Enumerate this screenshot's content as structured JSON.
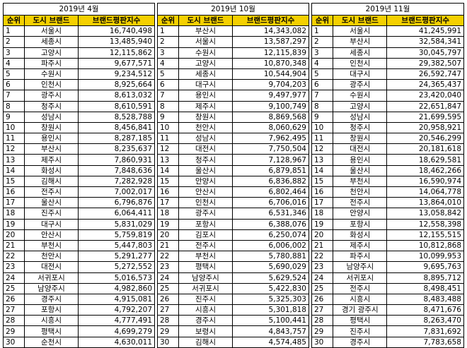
{
  "tables": [
    {
      "period": "2019년 4월",
      "headers": [
        "순위",
        "도시 브랜드",
        "브랜드평판지수"
      ],
      "rows": [
        [
          "1",
          "서울시",
          "16,740,498"
        ],
        [
          "2",
          "세종시",
          "13,485,940"
        ],
        [
          "3",
          "고양시",
          "12,115,862"
        ],
        [
          "4",
          "파주시",
          "9,677,571"
        ],
        [
          "5",
          "수원시",
          "9,234,512"
        ],
        [
          "6",
          "인천시",
          "8,925,664"
        ],
        [
          "7",
          "광주시",
          "8,613,032"
        ],
        [
          "8",
          "청주시",
          "8,610,591"
        ],
        [
          "9",
          "성남시",
          "8,528,788"
        ],
        [
          "10",
          "창원시",
          "8,456,841"
        ],
        [
          "11",
          "용인시",
          "8,287,185"
        ],
        [
          "12",
          "부산시",
          "8,235,637"
        ],
        [
          "13",
          "제주시",
          "7,860,931"
        ],
        [
          "14",
          "화성시",
          "7,848,636"
        ],
        [
          "15",
          "김해시",
          "7,282,928"
        ],
        [
          "16",
          "전주시",
          "7,002,017"
        ],
        [
          "17",
          "울산시",
          "6,796,876"
        ],
        [
          "18",
          "진주시",
          "6,064,411"
        ],
        [
          "19",
          "대구시",
          "5,831,029"
        ],
        [
          "20",
          "안산시",
          "5,759,819"
        ],
        [
          "21",
          "부천시",
          "5,447,803"
        ],
        [
          "22",
          "천안시",
          "5,291,277"
        ],
        [
          "23",
          "대전시",
          "5,272,552"
        ],
        [
          "24",
          "서귀포시",
          "5,016,573"
        ],
        [
          "25",
          "남양주시",
          "4,982,860"
        ],
        [
          "26",
          "경주시",
          "4,915,081"
        ],
        [
          "27",
          "포항시",
          "4,792,207"
        ],
        [
          "28",
          "시흥시",
          "4,777,491"
        ],
        [
          "29",
          "평택시",
          "4,699,279"
        ],
        [
          "30",
          "순천시",
          "4,630,011"
        ]
      ]
    },
    {
      "period": "2019년 10월",
      "headers": [
        "순위",
        "도시 브랜드",
        "브랜드평판지수"
      ],
      "rows": [
        [
          "1",
          "부산시",
          "14,343,082"
        ],
        [
          "2",
          "서울시",
          "13,587,297"
        ],
        [
          "3",
          "수원시",
          "12,115,839"
        ],
        [
          "4",
          "고양시",
          "10,870,348"
        ],
        [
          "5",
          "세종시",
          "10,544,904"
        ],
        [
          "6",
          "대구시",
          "9,704,203"
        ],
        [
          "7",
          "용인시",
          "9,497,977"
        ],
        [
          "8",
          "제주시",
          "9,100,749"
        ],
        [
          "9",
          "창원시",
          "8,869,568"
        ],
        [
          "10",
          "천안시",
          "8,060,629"
        ],
        [
          "11",
          "성남시",
          "7,962,495"
        ],
        [
          "12",
          "대전시",
          "7,750,504"
        ],
        [
          "13",
          "청주시",
          "7,128,967"
        ],
        [
          "14",
          "울산시",
          "6,879,851"
        ],
        [
          "15",
          "안양시",
          "6,836,882"
        ],
        [
          "16",
          "안산시",
          "6,802,464"
        ],
        [
          "17",
          "인천시",
          "6,706,016"
        ],
        [
          "18",
          "광주시",
          "6,531,346"
        ],
        [
          "19",
          "포항시",
          "6,388,076"
        ],
        [
          "20",
          "김포시",
          "6,250,074"
        ],
        [
          "21",
          "전주시",
          "6,006,002"
        ],
        [
          "22",
          "부천시",
          "5,780,881"
        ],
        [
          "23",
          "평택시",
          "5,690,029"
        ],
        [
          "24",
          "남양주시",
          "5,629,524"
        ],
        [
          "25",
          "서귀포시",
          "5,422,830"
        ],
        [
          "26",
          "진주시",
          "5,325,303"
        ],
        [
          "27",
          "시흥시",
          "5,301,818"
        ],
        [
          "28",
          "경주시",
          "5,100,441"
        ],
        [
          "29",
          "보령시",
          "4,843,757"
        ],
        [
          "30",
          "김해시",
          "4,574,485"
        ]
      ]
    },
    {
      "period": "2019년 11월",
      "headers": [
        "순위",
        "도시 브랜드",
        "브랜드평판지수"
      ],
      "rows": [
        [
          "1",
          "서울시",
          "41,245,991"
        ],
        [
          "2",
          "부산시",
          "32,584,341"
        ],
        [
          "3",
          "세종시",
          "30,045,797"
        ],
        [
          "4",
          "인천시",
          "29,382,507"
        ],
        [
          "5",
          "대구시",
          "26,592,747"
        ],
        [
          "6",
          "광주시",
          "24,365,437"
        ],
        [
          "7",
          "수원시",
          "23,420,040"
        ],
        [
          "8",
          "고양시",
          "22,651,847"
        ],
        [
          "9",
          "성남시",
          "21,699,595"
        ],
        [
          "10",
          "청주시",
          "20,958,921"
        ],
        [
          "11",
          "창원시",
          "20,546,299"
        ],
        [
          "12",
          "대전시",
          "20,181,618"
        ],
        [
          "13",
          "용인시",
          "18,629,581"
        ],
        [
          "14",
          "울산시",
          "18,462,266"
        ],
        [
          "15",
          "부천시",
          "16,590,974"
        ],
        [
          "16",
          "천안시",
          "14,064,778"
        ],
        [
          "17",
          "전주시",
          "13,864,010"
        ],
        [
          "18",
          "안양시",
          "13,058,842"
        ],
        [
          "19",
          "포항시",
          "12,558,398"
        ],
        [
          "20",
          "화성시",
          "12,155,515"
        ],
        [
          "21",
          "제주시",
          "10,812,868"
        ],
        [
          "22",
          "파주시",
          "10,099,953"
        ],
        [
          "23",
          "남양주시",
          "9,695,763"
        ],
        [
          "24",
          "서귀포시",
          "8,895,712"
        ],
        [
          "25",
          "전주시",
          "8,498,451"
        ],
        [
          "26",
          "시흥시",
          "8,483,488"
        ],
        [
          "27",
          "경기 광주시",
          "8,471,676"
        ],
        [
          "28",
          "평택시",
          "8,263,470"
        ],
        [
          "29",
          "진주시",
          "7,831,692"
        ],
        [
          "30",
          "경주시",
          "7,783,658"
        ]
      ]
    }
  ],
  "colors": {
    "header_bg": "#f5d000",
    "border": "#000000",
    "background": "#ffffff"
  }
}
